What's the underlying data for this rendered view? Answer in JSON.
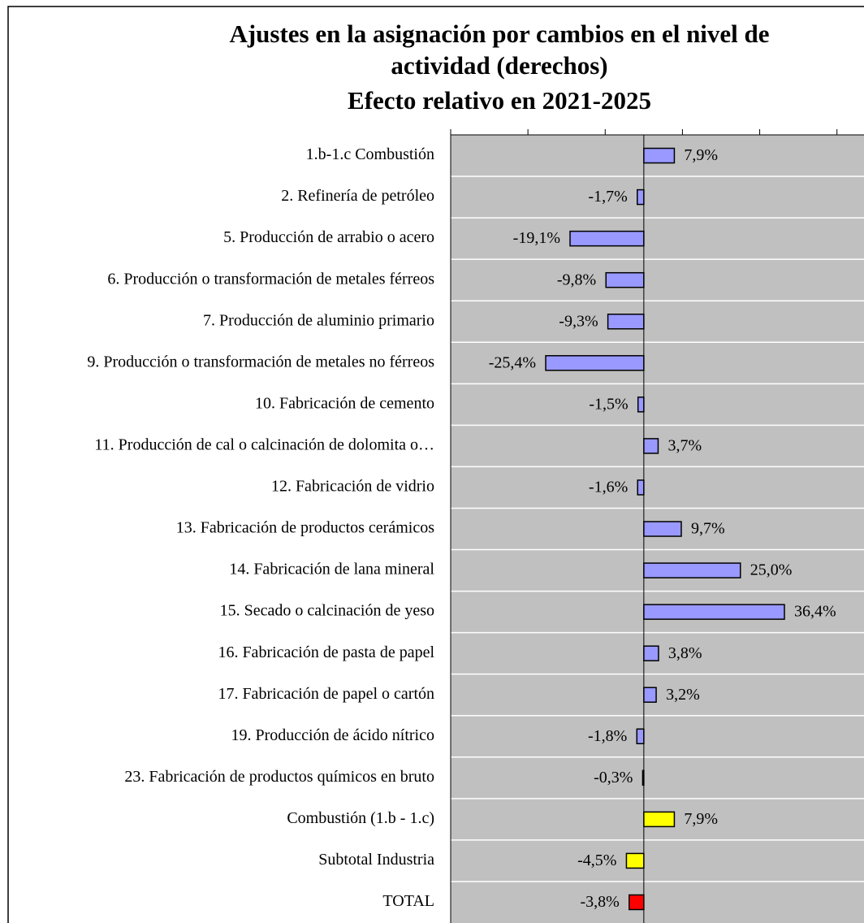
{
  "chart_data": {
    "type": "barh",
    "title": [
      "Ajustes en la asignación por cambios en el nivel de",
      "actividad (derechos)"
    ],
    "subtitle": "Efecto relativo en 2021-2025",
    "categories": [
      "1.b-1.c Combustión",
      "2. Refinería de petróleo",
      "5. Producción de arrabio o acero",
      "6. Producción o transformación de metales férreos",
      "7. Producción de aluminio primario",
      "9. Producción o transformación de metales no férreos",
      "10. Fabricación de cemento",
      "11. Producción de cal o calcinación de dolomita o…",
      "12. Fabricación de vidrio",
      "13. Fabricación de productos cerámicos",
      "14. Fabricación de lana mineral",
      "15. Secado o calcinación de yeso",
      "16. Fabricación de pasta de papel",
      "17. Fabricación de papel o cartón",
      "19. Producción de ácido nítrico",
      "23. Fabricación de productos químicos en bruto",
      "Combustión (1.b - 1.c)",
      "Subtotal Industria",
      "TOTAL"
    ],
    "values": [
      7.9,
      -1.7,
      -19.1,
      -9.8,
      -9.3,
      -25.4,
      -1.5,
      3.7,
      -1.6,
      9.7,
      25.0,
      36.4,
      3.8,
      3.2,
      -1.8,
      -0.3,
      7.9,
      -4.5,
      -3.8
    ],
    "value_labels": [
      "7,9%",
      "-1,7%",
      "-19,1%",
      "-9,8%",
      "-9,3%",
      "-25,4%",
      "-1,5%",
      "3,7%",
      "-1,6%",
      "9,7%",
      "25,0%",
      "36,4%",
      "3,8%",
      "3,2%",
      "-1,8%",
      "-0,3%",
      "7,9%",
      "-4,5%",
      "-3,8%"
    ],
    "colors": [
      "#9999ff",
      "#9999ff",
      "#9999ff",
      "#9999ff",
      "#9999ff",
      "#9999ff",
      "#9999ff",
      "#9999ff",
      "#9999ff",
      "#9999ff",
      "#9999ff",
      "#9999ff",
      "#9999ff",
      "#9999ff",
      "#9999ff",
      "#9999ff",
      "#ffff00",
      "#ffff00",
      "#ff0000"
    ],
    "xlim": [
      -50,
      57
    ],
    "xticks": [
      -50,
      -30,
      -10,
      10,
      30,
      50
    ],
    "plot_background": "#c0c0c0"
  }
}
